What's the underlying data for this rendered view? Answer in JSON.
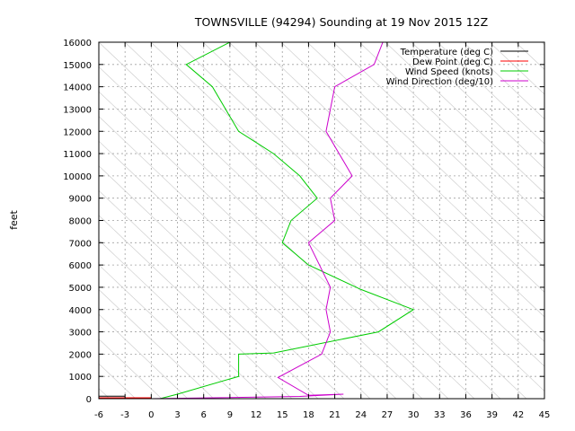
{
  "chart_data": {
    "type": "line",
    "title": "TOWNSVILLE (94294) Sounding at 19 Nov 2015 12Z",
    "xlabel": "",
    "ylabel": "feet",
    "xlim": [
      -6,
      45
    ],
    "ylim": [
      0,
      16000
    ],
    "x_ticks": [
      -6,
      -3,
      0,
      3,
      6,
      9,
      12,
      15,
      18,
      21,
      24,
      27,
      30,
      33,
      36,
      39,
      42,
      45
    ],
    "y_ticks": [
      0,
      1000,
      2000,
      3000,
      4000,
      5000,
      6000,
      7000,
      8000,
      9000,
      10000,
      11000,
      12000,
      13000,
      14000,
      15000,
      16000
    ],
    "grid": true,
    "legend_position": "top-right",
    "series": [
      {
        "name": "Temperature (deg C)",
        "color": "#000000",
        "points": [
          [
            -6,
            110
          ],
          [
            -3,
            110
          ]
        ]
      },
      {
        "name": "Dew Point (deg C)",
        "color": "#ff0000",
        "points": [
          [
            -6,
            40
          ],
          [
            0,
            40
          ]
        ]
      },
      {
        "name": "Wind Speed (knots)",
        "color": "#00cc00",
        "points": [
          [
            -6,
            0
          ],
          [
            1,
            0
          ],
          [
            3,
            200
          ],
          [
            10,
            1000
          ],
          [
            10,
            2000
          ],
          [
            14,
            2050
          ],
          [
            26,
            3000
          ],
          [
            30,
            4000
          ],
          [
            24,
            4900
          ],
          [
            18,
            6000
          ],
          [
            15,
            7000
          ],
          [
            16,
            8000
          ],
          [
            19,
            9000
          ],
          [
            17,
            10000
          ],
          [
            14,
            11000
          ],
          [
            12,
            11500
          ],
          [
            10,
            12000
          ],
          [
            7,
            14000
          ],
          [
            4,
            15000
          ],
          [
            9,
            16000
          ]
        ]
      },
      {
        "name": "Wind Direction (deg/10)",
        "color": "#cc00cc",
        "points": [
          [
            0,
            0
          ],
          [
            17,
            100
          ],
          [
            22,
            200
          ],
          [
            18,
            150
          ],
          [
            14.5,
            950
          ],
          [
            19.5,
            2000
          ],
          [
            20.5,
            3000
          ],
          [
            20,
            4000
          ],
          [
            20.5,
            5000
          ],
          [
            18,
            7000
          ],
          [
            21,
            8000
          ],
          [
            20.5,
            9000
          ],
          [
            23,
            10000
          ],
          [
            20,
            12000
          ],
          [
            21,
            14000
          ],
          [
            25.5,
            15000
          ],
          [
            26.5,
            16000
          ]
        ]
      }
    ]
  }
}
